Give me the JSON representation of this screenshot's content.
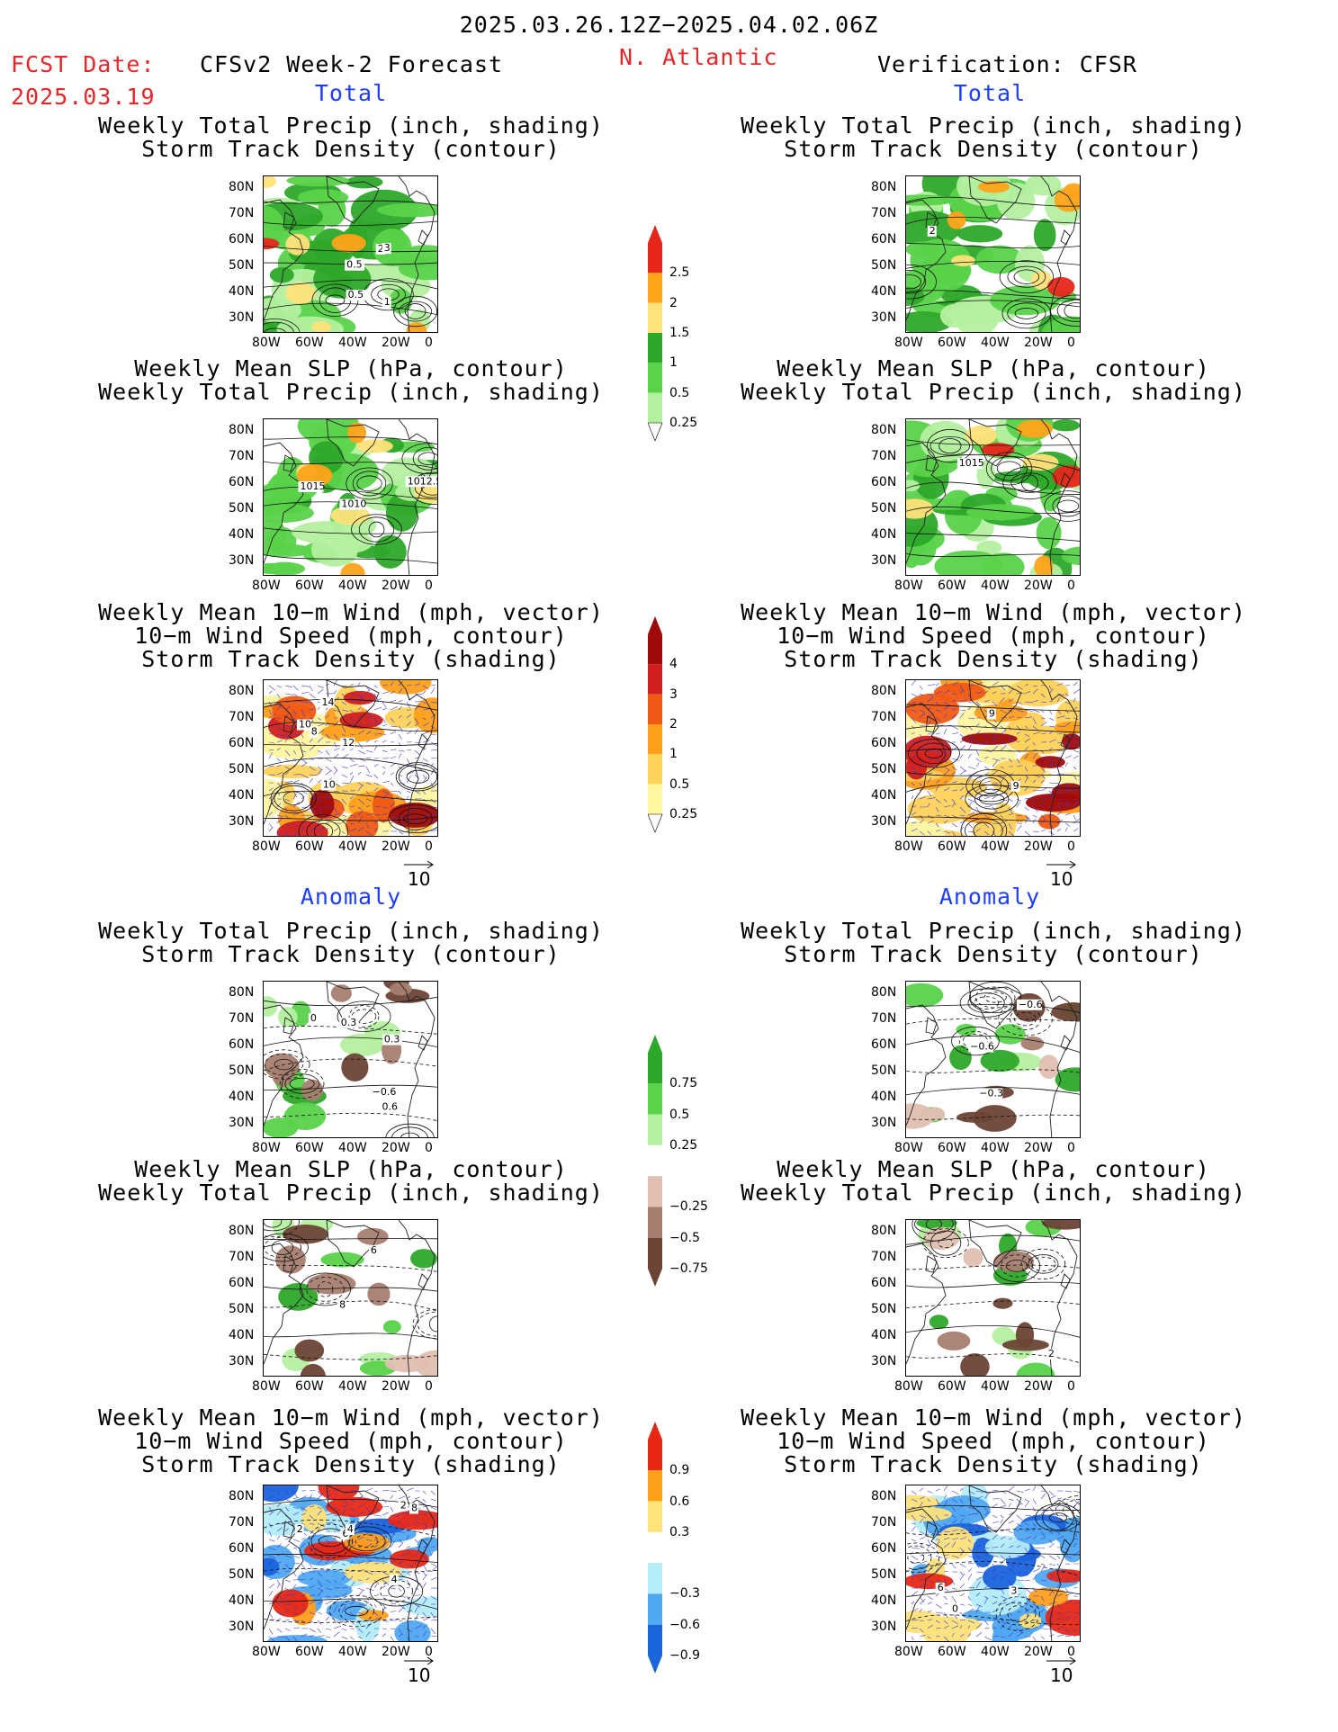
{
  "header": {
    "period": "2025.03.26.12Z−2025.04.02.06Z",
    "fcst_label": "FCST Date:",
    "fcst_date": "2025.03.19",
    "model": "CFSv2 Week-2 Forecast",
    "region": "N. Atlantic",
    "verification": "Verification: CFSR"
  },
  "section_labels": {
    "total": "Total",
    "anomaly": "Anomaly"
  },
  "panel_titles": {
    "precip_storm": [
      "Weekly Total Precip (inch, shading)",
      "Storm Track Density (contour)"
    ],
    "slp_precip": [
      "Weekly Mean SLP (hPa, contour)",
      "Weekly Total Precip (inch, shading)"
    ],
    "wind_storm": [
      "Weekly Mean 10−m Wind (mph, vector)",
      "10−m Wind Speed (mph, contour)",
      "Storm Track Density (shading)"
    ]
  },
  "axes": {
    "lat_labels": [
      "80N",
      "70N",
      "60N",
      "50N",
      "40N",
      "30N"
    ],
    "lon_labels": [
      "80W",
      "60W",
      "40W",
      "20W",
      "0"
    ]
  },
  "vector_reference": "10",
  "colorbars": {
    "precip_total": [
      "2.5",
      "2",
      "1.5",
      "1",
      "0.5",
      "0.25"
    ],
    "storm_total": [
      "4",
      "3",
      "2",
      "1",
      "0.5",
      "0.25"
    ],
    "precip_anom": [
      "0.75",
      "0.5",
      "0.25",
      "−0.25",
      "−0.5",
      "−0.75"
    ],
    "storm_anom": [
      "0.9",
      "0.6",
      "0.3",
      "−0.3",
      "−0.6",
      "−0.9"
    ]
  },
  "contour_labels": {
    "fc_total_precip": [
      "2",
      "1",
      "3",
      "0.5",
      "0.5"
    ],
    "obs_total_precip": [
      "2"
    ],
    "fc_total_slp": [
      "1012.5",
      "1010",
      "1015"
    ],
    "obs_total_slp": [
      "1015"
    ],
    "fc_total_wind": [
      "8",
      "10",
      "12",
      "14",
      "10"
    ],
    "obs_total_wind": [
      "9",
      "9"
    ],
    "fc_anom_precip": [
      "0.3",
      "0.6",
      "0.3",
      "−0.6",
      "0"
    ],
    "obs_anom_precip": [
      "−0.6",
      "−0.6",
      "−0.3"
    ],
    "fc_anom_slp": [
      "6",
      "8"
    ],
    "obs_anom_slp": [
      "2"
    ],
    "fc_anom_wind": [
      "2",
      "2",
      "6",
      "4",
      "8",
      "4"
    ],
    "obs_anom_wind": [
      "0",
      "3",
      "6"
    ]
  },
  "colors": {
    "title_red": "#e8262a",
    "label_blue": "#1d3dff",
    "precip": [
      "#b4f0a0",
      "#5ad24a",
      "#2ea82a",
      "#ffe27a",
      "#ffa31a",
      "#e8261a"
    ],
    "storm": [
      "#fff6a0",
      "#ffd25a",
      "#ff9f1a",
      "#f05a14",
      "#d21e1e",
      "#a00a0a"
    ],
    "precip_anom": [
      "#2ea82a",
      "#5ad24a",
      "#b4f0a0",
      "#e2bfb2",
      "#a67e70",
      "#6b4436"
    ],
    "storm_anom": [
      "#e82814",
      "#ff9f1a",
      "#ffe27a",
      "#b4ecfa",
      "#50a8f0",
      "#1a64dc"
    ]
  }
}
